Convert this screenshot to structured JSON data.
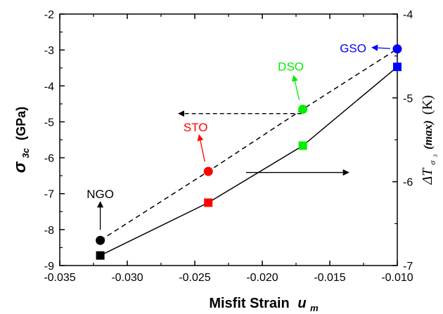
{
  "chart_data": {
    "type": "scatter",
    "xlabel": "Misfit Strain",
    "xlabel_symbol": "u",
    "xlabel_subscript": "m",
    "ylabel_left": "(GPa)",
    "ylabel_left_symbol": "σ",
    "ylabel_left_subscript": "3c",
    "ylabel_right": "(K)",
    "ylabel_right_prefix": "ΔT",
    "ylabel_right_subscript": "σ",
    "ylabel_right_subsubscript": "3",
    "ylabel_right_paren": "(max)",
    "x_range": [
      -0.035,
      -0.01
    ],
    "x_ticks": [
      -0.035,
      -0.03,
      -0.025,
      -0.02,
      -0.015,
      -0.01
    ],
    "x_tick_labels": [
      "-0.035",
      "-0.030",
      "-0.025",
      "-0.020",
      "-0.015",
      "-0.010"
    ],
    "y_left_range": [
      -9,
      -2
    ],
    "y_left_ticks": [
      -9,
      -8,
      -7,
      -6,
      -5,
      -4,
      -3,
      -2
    ],
    "y_left_tick_labels": [
      "-9",
      "-8",
      "-7",
      "-6",
      "-5",
      "-4",
      "-3",
      "-2"
    ],
    "y_right_range": [
      -7,
      -4
    ],
    "y_right_ticks": [
      -7,
      -6,
      -5,
      -4
    ],
    "y_right_tick_labels": [
      "-7",
      "-6",
      "-5",
      "-4"
    ],
    "grid": false,
    "series": [
      {
        "axis": "left",
        "marker": "circle",
        "line": "dashed",
        "x": [
          -0.032,
          -0.024,
          -0.017,
          -0.01
        ],
        "y": [
          -8.3,
          -6.38,
          -4.65,
          -2.97
        ]
      },
      {
        "axis": "right",
        "marker": "square",
        "line": "solid",
        "x": [
          -0.032,
          -0.024,
          -0.017,
          -0.01
        ],
        "y": [
          -6.88,
          -6.25,
          -5.57,
          -4.63
        ]
      }
    ],
    "point_colors": [
      "#000000",
      "#ff0000",
      "#00ee00",
      "#0000ff"
    ],
    "annotations": [
      {
        "label": "NGO",
        "color": "#000000",
        "point_x": -0.032
      },
      {
        "label": "STO",
        "color": "#ff0000",
        "point_x": -0.024
      },
      {
        "label": "DSO",
        "color": "#00ee00",
        "point_x": -0.017
      },
      {
        "label": "GSO",
        "color": "#0000ff",
        "point_x": -0.01
      }
    ],
    "axis_indicators": [
      {
        "points_to": "left",
        "line": "dashed"
      },
      {
        "points_to": "right",
        "line": "solid"
      }
    ]
  }
}
